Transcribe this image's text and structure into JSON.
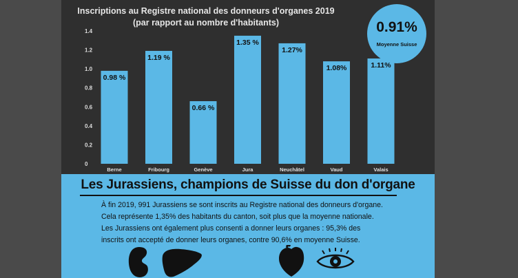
{
  "title_line1": "Inscriptions au Registre national des donneurs d'organes 2019",
  "title_line2": "(par rapport au nombre d'habitants)",
  "average": {
    "value": "0.91%",
    "label": "Moyenne Suisse"
  },
  "headline": "Les Jurassiens, champions de Suisse du don d'organe",
  "paragraph": [
    "À fin 2019, 991 Jurassiens se sont inscrits au Registre national des donneurs d'organe.",
    "Cela représente 1,35% des habitants du canton, soit plus que la moyenne nationale.",
    "Les Jurassiens ont également plus consenti a donner leurs organes : 95,3% des",
    "inscrits ont accepté de donner leurs organes, contre 90,6% en moyenne Suisse."
  ],
  "colors": {
    "panel": "#2f2f2f",
    "bar": "#5bb8e6",
    "accent": "#5bb8e6",
    "text_dark": "#111111"
  },
  "icons": [
    "kidney-icon",
    "liver-icon",
    "heart-icon",
    "eye-icon"
  ],
  "chart_data": {
    "type": "bar",
    "title": "Inscriptions au Registre national des donneurs d'organes 2019",
    "subtitle": "(par rapport au nombre d'habitants)",
    "categories": [
      "Berne",
      "Fribourg",
      "Genève",
      "Jura",
      "Neuchâtel",
      "Vaud",
      "Valais"
    ],
    "values": [
      0.98,
      1.19,
      0.66,
      1.35,
      1.27,
      1.08,
      1.11
    ],
    "data_labels": [
      "0.98 %",
      "1.19 %",
      "0.66 %",
      "1.35 %",
      "1.27%",
      "1.08%",
      "1.11%"
    ],
    "y_ticks": [
      "0",
      "0.2",
      "0.4",
      "0.6",
      "0.8",
      "1.0",
      "1.2",
      "1.4"
    ],
    "ylim": [
      0,
      1.4
    ],
    "grid": false,
    "legend": "none"
  }
}
